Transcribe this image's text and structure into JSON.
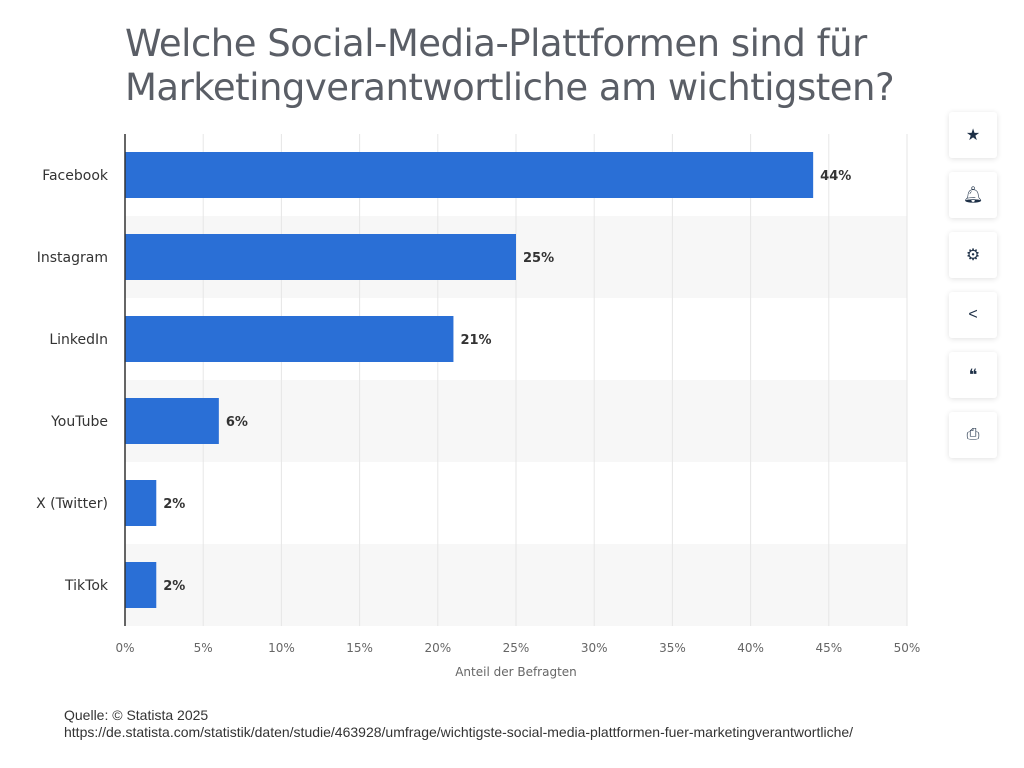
{
  "title": "Welche Social-Media-Plattformen sind für Marketingverantwortliche am wichtigsten?",
  "chart_data": {
    "type": "bar",
    "orientation": "horizontal",
    "categories": [
      "Facebook",
      "Instagram",
      "LinkedIn",
      "YouTube",
      "X (Twitter)",
      "TikTok"
    ],
    "values": [
      44,
      25,
      21,
      6,
      2,
      2
    ],
    "data_labels": [
      "44%",
      "25%",
      "21%",
      "6%",
      "2%",
      "2%"
    ],
    "xlabel": "Anteil der Befragten",
    "ylabel": "",
    "xlim": [
      0,
      50
    ],
    "xticks": [
      "0%",
      "5%",
      "10%",
      "15%",
      "20%",
      "25%",
      "30%",
      "35%",
      "40%",
      "45%",
      "50%"
    ],
    "grid": true,
    "bar_color": "#2a6fd6"
  },
  "source": {
    "label": "Quelle: © Statista 2025",
    "url": "https://de.statista.com/statistik/daten/studie/463928/umfrage/wichtigste-social-media-plattformen-fuer-marketingverantwortliche/"
  },
  "sidebar": [
    {
      "icon": "star-icon",
      "glyph": "★"
    },
    {
      "icon": "bell-icon",
      "glyph": "🔔︎"
    },
    {
      "icon": "gear-icon",
      "glyph": "⚙"
    },
    {
      "icon": "share-icon",
      "glyph": "<"
    },
    {
      "icon": "quote-icon",
      "glyph": "❝"
    },
    {
      "icon": "print-icon",
      "glyph": "⎙"
    }
  ]
}
